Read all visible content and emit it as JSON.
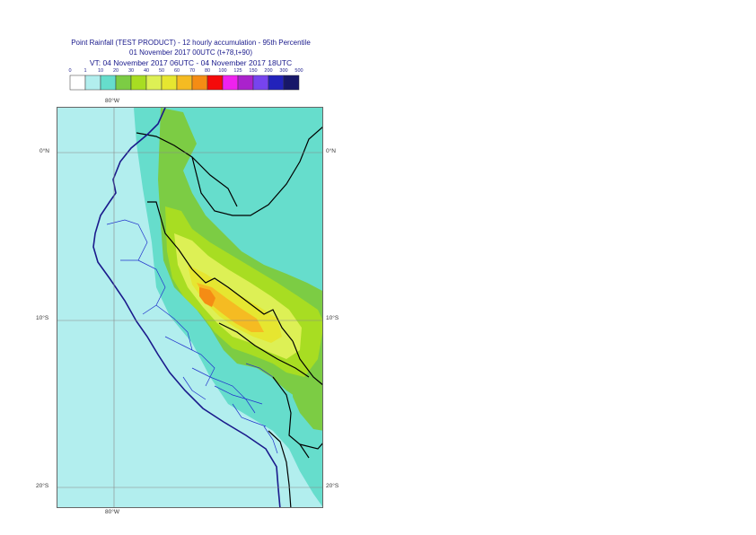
{
  "title": {
    "line1": "Point Rainfall (TEST PRODUCT) - 12 hourly accumulation - 95th Percentile",
    "line2": "01 November 2017 00UTC (t+78,t+90)",
    "line3": "VT: 04 November 2017 06UTC - 04 November 2017 18UTC"
  },
  "legend": {
    "thresholds": [
      "0",
      "1",
      "10",
      "20",
      "30",
      "40",
      "50",
      "60",
      "70",
      "80",
      "100",
      "125",
      "150",
      "200",
      "300",
      "500"
    ],
    "colors": [
      "#ffffff",
      "#b2eeee",
      "#66ddcc",
      "#7ccc44",
      "#a8dd22",
      "#ddf055",
      "#e6e630",
      "#f5bb22",
      "#f58c14",
      "#f50a0a",
      "#ee22ee",
      "#aa22cc",
      "#7744ee",
      "#2222bb",
      "#171769"
    ]
  },
  "axes": {
    "lon_top": "80°W",
    "lon_bottom": "80°W",
    "lat_left": [
      "0°N",
      "10°S",
      "20°S"
    ],
    "lat_right": [
      "0°N",
      "10°S",
      "20°S"
    ]
  },
  "map": {
    "ocean_color": "#b2eeee",
    "coast_color": "#1a1a8c",
    "border_color": "#000000"
  }
}
